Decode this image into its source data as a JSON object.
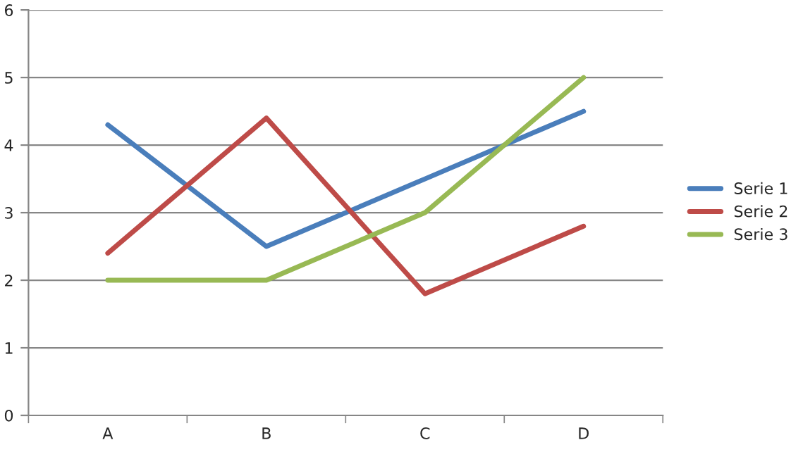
{
  "chart_data": {
    "type": "line",
    "categories": [
      "A",
      "B",
      "C",
      "D"
    ],
    "series": [
      {
        "name": "Serie 1",
        "color": "#4a7ebb",
        "values": [
          4.3,
          2.5,
          3.5,
          4.5
        ]
      },
      {
        "name": "Serie 2",
        "color": "#be4b48",
        "values": [
          2.4,
          4.4,
          1.8,
          2.8
        ]
      },
      {
        "name": "Serie 3",
        "color": "#98b954",
        "values": [
          2,
          2,
          3,
          5
        ]
      }
    ],
    "ylim": [
      0,
      6
    ],
    "yticks": [
      0,
      1,
      2,
      3,
      4,
      5,
      6
    ],
    "grid": "y",
    "legend": "right",
    "marker": "none",
    "line_style": "solid"
  }
}
